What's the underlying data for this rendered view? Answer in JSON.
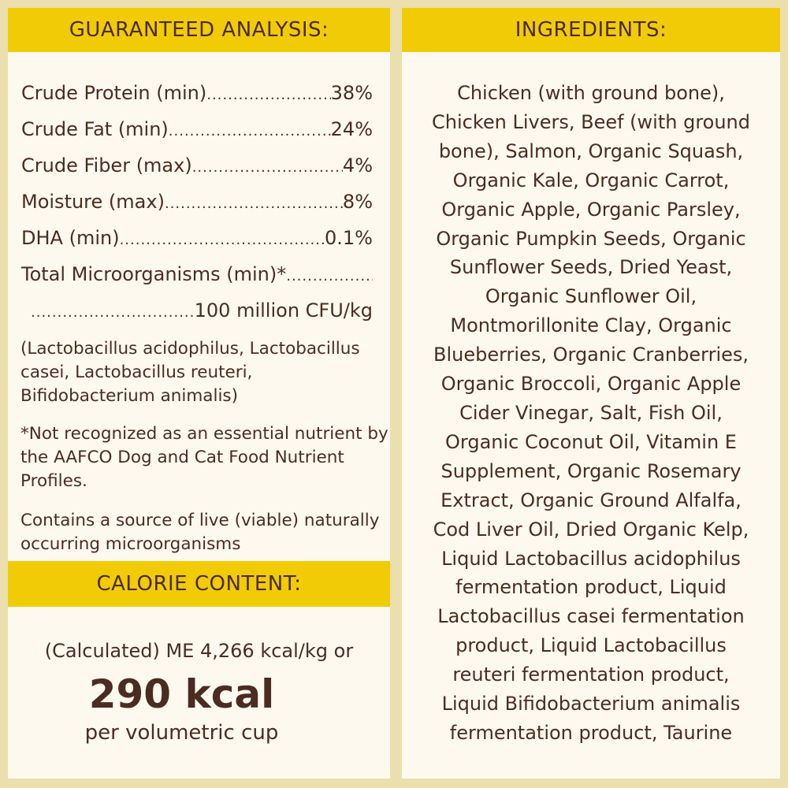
{
  "guaranteed_analysis": {
    "title": "GUARANTEED ANALYSIS:",
    "rows": [
      {
        "label": "Crude Protein (min)",
        "value": "38%"
      },
      {
        "label": "Crude Fat (min)",
        "value": "24%"
      },
      {
        "label": "Crude Fiber (max)",
        "value": "4%"
      },
      {
        "label": "Moisture (max)",
        "value": "8%"
      },
      {
        "label": "DHA (min) ",
        "value": "0.1%"
      },
      {
        "label": "Total Microorganisms (min)*",
        "value": ""
      },
      {
        "label": "",
        "value": "100 million CFU/kg"
      }
    ],
    "strains": "(Lactobacillus acidophilus, Lactobacillus casei, Lactobacillus reuteri, Bifidobacterium animalis)",
    "footnote": "*Not recognized as an essential nutrient by the AAFCO Dog and Cat Food Nutrient Profiles.",
    "live_note": "Contains a source of live (viable) naturally occurring microorganisms"
  },
  "calorie_content": {
    "title": "CALORIE CONTENT:",
    "line1": "(Calculated) ME 4,266 kcal/kg or",
    "big": "290 kcal",
    "line3": "per volumetric cup"
  },
  "ingredients": {
    "title": "INGREDIENTS:",
    "lines": [
      "Chicken (with ground bone),",
      "Chicken Livers, Beef (with ground",
      "bone), Salmon, Organic Squash,",
      "Organic Kale, Organic Carrot,",
      "Organic Apple, Organic Parsley,",
      "Organic Pumpkin Seeds, Organic",
      "Sunflower Seeds, Dried Yeast,",
      "Organic Sunflower Oil,",
      "Montmorillonite Clay, Organic",
      "Blueberries, Organic Cranberries,",
      "Organic Broccoli, Organic Apple",
      "Cider Vinegar, Salt, Fish Oil,",
      "Organic Coconut Oil, Vitamin E",
      "Supplement, Organic Rosemary",
      "Extract, Organic Ground Alfalfa,",
      "Cod Liver Oil, Dried Organic Kelp,",
      "Liquid Lactobacillus acidophilus",
      "fermentation product, Liquid",
      "Lactobacillus casei fermentation",
      "product, Liquid Lactobacillus",
      "reuteri fermentation product,",
      "Liquid Bifidobacterium animalis",
      "fermentation product, Taurine"
    ]
  },
  "colors": {
    "header": "#f1cb05",
    "panel": "#fdf9ee",
    "background": "#ebdfad",
    "text": "#4b2c22"
  }
}
